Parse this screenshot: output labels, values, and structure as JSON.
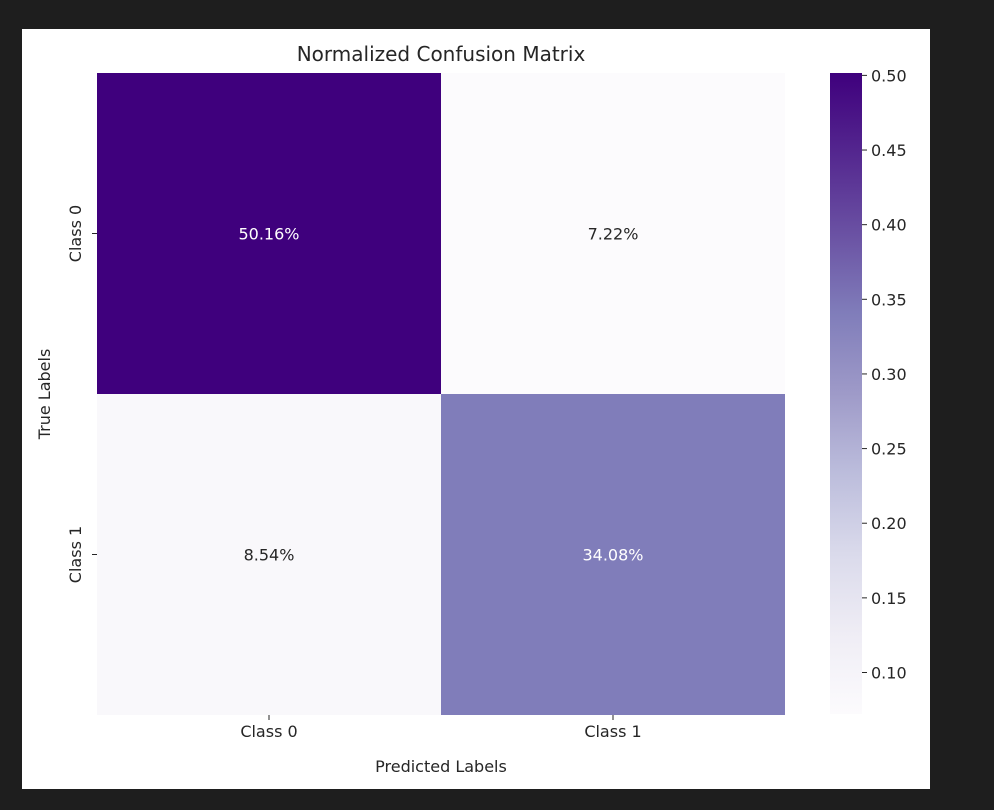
{
  "chart_data": {
    "type": "heatmap",
    "title": "Normalized Confusion Matrix",
    "xlabel": "Predicted Labels",
    "ylabel": "True Labels",
    "x_categories": [
      "Class 0",
      "Class 1"
    ],
    "y_categories": [
      "Class 0",
      "Class 1"
    ],
    "values": [
      [
        0.5016,
        0.0722
      ],
      [
        0.0854,
        0.3408
      ]
    ],
    "cell_labels": [
      [
        "50.16%",
        "7.22%"
      ],
      [
        "8.54%",
        "34.08%"
      ]
    ],
    "colormap": "Purples",
    "colorbar": {
      "range": [
        0.0722,
        0.5016
      ],
      "ticks": [
        0.1,
        0.15,
        0.2,
        0.25,
        0.3,
        0.35,
        0.4,
        0.45,
        0.5
      ],
      "tick_labels": [
        "0.10",
        "0.15",
        "0.20",
        "0.25",
        "0.30",
        "0.35",
        "0.40",
        "0.45",
        "0.50"
      ]
    },
    "grid": false
  }
}
